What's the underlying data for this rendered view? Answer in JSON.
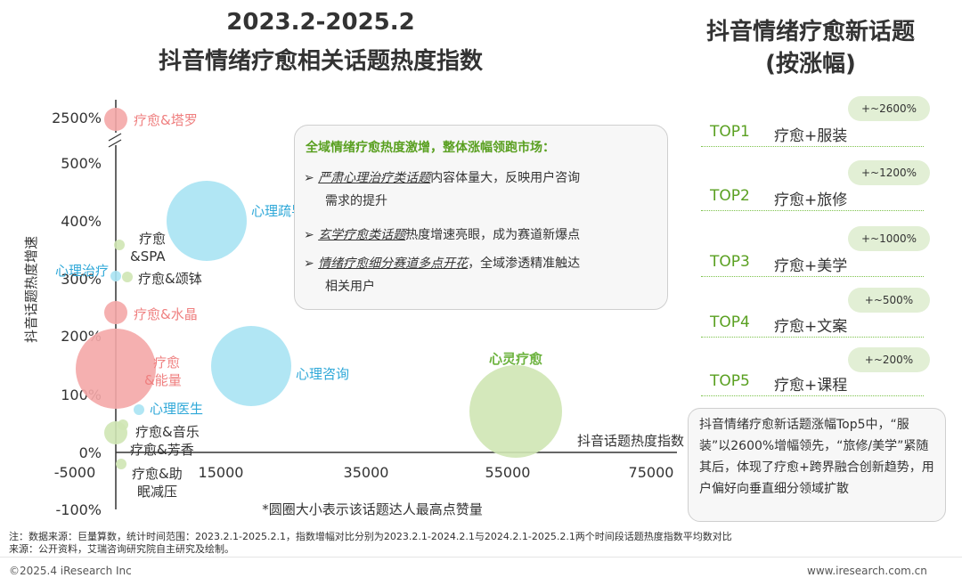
{
  "title": {
    "line1": "2023.2-2025.2",
    "line2": "抖音情绪疗愈相关话题热度指数"
  },
  "chart_data": {
    "type": "scatter",
    "xlabel": "抖音话题热度指数",
    "ylabel": "抖音话题热度增速",
    "size_note": "*圆圈大小表示该话题达人最高点赞量",
    "x_ticks": [
      "-5000",
      "15000",
      "35000",
      "55000",
      "75000"
    ],
    "y_ticks": [
      "2500%",
      "500%",
      "400%",
      "300%",
      "200%",
      "100%",
      "0%",
      "-100%"
    ],
    "xlim": [
      -5000,
      75000
    ],
    "ylim": [
      -100,
      500
    ],
    "axis_break": "500%-2500%",
    "colors": {
      "pink": "#f4a7a7",
      "blue": "#a9e3f3",
      "green": "#cfe6b4"
    },
    "points": [
      {
        "label": "疗愈&塔罗",
        "x": 0,
        "y": 2500,
        "size": "small",
        "color": "pink"
      },
      {
        "label": "心理疏导",
        "x": 10000,
        "y": 400,
        "size": "large",
        "color": "blue"
      },
      {
        "label": "疗愈&SPA",
        "x": 0,
        "y": 330,
        "size": "tiny",
        "color": "green"
      },
      {
        "label": "心理治疗",
        "x": 0,
        "y": 300,
        "size": "tiny",
        "color": "blue"
      },
      {
        "label": "疗愈&颂钵",
        "x": 1500,
        "y": 300,
        "size": "tiny",
        "color": "green"
      },
      {
        "label": "疗愈&水晶",
        "x": 0,
        "y": 240,
        "size": "small",
        "color": "pink"
      },
      {
        "label": "疗愈&能量",
        "x": 0,
        "y": 145,
        "size": "large",
        "color": "pink"
      },
      {
        "label": "心理咨询",
        "x": 14000,
        "y": 150,
        "size": "large",
        "color": "blue"
      },
      {
        "label": "心理医生",
        "x": 2500,
        "y": 75,
        "size": "tiny",
        "color": "blue"
      },
      {
        "label": "心灵疗愈",
        "x": 53000,
        "y": 70,
        "size": "xlarge",
        "color": "green"
      },
      {
        "label": "疗愈&音乐",
        "x": 1000,
        "y": 45,
        "size": "tiny",
        "color": "green"
      },
      {
        "label": "疗愈&芳香",
        "x": 0,
        "y": 35,
        "size": "small",
        "color": "green"
      },
      {
        "label": "疗愈&助眠减压",
        "x": 500,
        "y": -20,
        "size": "tiny",
        "color": "green"
      }
    ]
  },
  "callout": {
    "heading": "全域情绪疗愈热度激增，整体涨幅领跑市场：",
    "bullet_symbol": "➢",
    "bullets": [
      {
        "em": "严肃心理治疗类话题",
        "text": "内容体量大，反映用户咨询",
        "cont": "需求的提升"
      },
      {
        "em": "玄学疗愈类话题",
        "text": "热度增速亮眼，成为赛道新爆点",
        "cont": ""
      },
      {
        "em": "情绪疗愈细分赛道多点开花",
        "text": "，全域渗透精准触达",
        "cont": "相关用户"
      }
    ]
  },
  "right_panel": {
    "title_line1": "抖音情绪疗愈新话题",
    "title_line2": "(按涨幅)",
    "ranks": [
      {
        "top": "TOP1",
        "topic": "疗愈+服装",
        "growth": "+~2600%"
      },
      {
        "top": "TOP2",
        "topic": "疗愈+旅修",
        "growth": "+~1200%"
      },
      {
        "top": "TOP3",
        "topic": "疗愈+美学",
        "growth": "+~1000%"
      },
      {
        "top": "TOP4",
        "topic": "疗愈+文案",
        "growth": "+~500%"
      },
      {
        "top": "TOP5",
        "topic": "疗愈+课程",
        "growth": "+~200%"
      }
    ],
    "summary": "抖音情绪疗愈新话题涨幅Top5中，“服装”以2600%增幅领先，“旅修/美学”紧随其后，体现了疗愈+跨界融合创新趋势，用户偏好向垂直细分领域扩散"
  },
  "footer": {
    "note1": "注：数据来源：巨量算数，统计时间范围：2023.2.1-2025.2.1，指数增幅对比分别为2023.2.1-2024.2.1与2024.2.1-2025.2.1两个时间段话题热度指数平均数对比",
    "note2": "来源：公开资料，艾瑞咨询研究院自主研究及绘制。",
    "copyright": "©2025.4 iResearch Inc",
    "website": "www.iresearch.com.cn"
  }
}
